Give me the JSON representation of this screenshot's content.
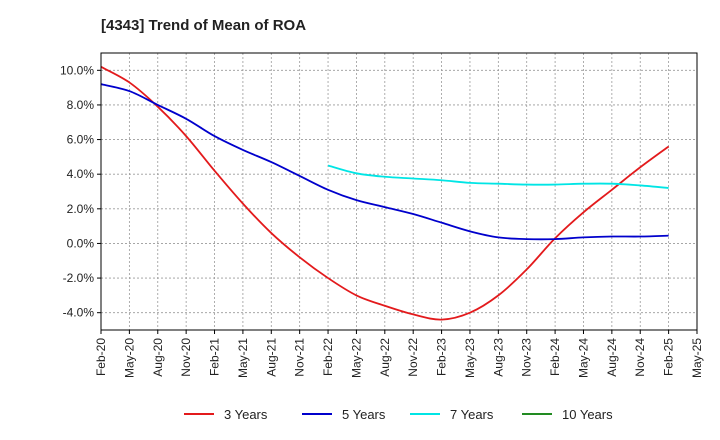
{
  "chart_data": {
    "type": "line",
    "title": "[4343]  Trend of Mean of ROA",
    "xlabel": "",
    "ylabel": "",
    "x_ticks": [
      "Feb-20",
      "May-20",
      "Aug-20",
      "Nov-20",
      "Feb-21",
      "May-21",
      "Aug-21",
      "Nov-21",
      "Feb-22",
      "May-22",
      "Aug-22",
      "Nov-22",
      "Feb-23",
      "May-23",
      "Aug-23",
      "Nov-23",
      "Feb-24",
      "May-24",
      "Aug-24",
      "Nov-24",
      "Feb-25",
      "May-25"
    ],
    "y_ticks": [
      "10.0%",
      "8.0%",
      "6.0%",
      "4.0%",
      "2.0%",
      "0.0%",
      "-2.0%",
      "-4.0%"
    ],
    "y_tick_values": [
      10,
      8,
      6,
      4,
      2,
      0,
      -2,
      -4
    ],
    "ylim": [
      -5.0,
      11.0
    ],
    "grid": true,
    "legend_position": "bottom",
    "series": [
      {
        "name": "3 Years",
        "color": "#e31a1c",
        "x_index": [
          0,
          1,
          2,
          3,
          4,
          5,
          6,
          7,
          8,
          9,
          10,
          11,
          12,
          13,
          14,
          15,
          16,
          17,
          18,
          19,
          20
        ],
        "values": [
          10.2,
          9.3,
          7.9,
          6.2,
          4.2,
          2.3,
          0.6,
          -0.8,
          -2.0,
          -3.0,
          -3.6,
          -4.1,
          -4.4,
          -4.0,
          -3.0,
          -1.5,
          0.3,
          1.8,
          3.1,
          4.4,
          5.6
        ]
      },
      {
        "name": "5 Years",
        "color": "#0000cc",
        "x_index": [
          0,
          1,
          2,
          3,
          4,
          5,
          6,
          7,
          8,
          9,
          10,
          11,
          12,
          13,
          14,
          15,
          16,
          17,
          18,
          19,
          20
        ],
        "values": [
          9.2,
          8.8,
          8.0,
          7.2,
          6.2,
          5.4,
          4.7,
          3.9,
          3.1,
          2.5,
          2.1,
          1.7,
          1.2,
          0.7,
          0.35,
          0.25,
          0.25,
          0.35,
          0.4,
          0.4,
          0.45
        ]
      },
      {
        "name": "7 Years",
        "color": "#00e5e5",
        "x_index": [
          8,
          9,
          10,
          11,
          12,
          13,
          14,
          15,
          16,
          17,
          18,
          19,
          20
        ],
        "values": [
          4.5,
          4.05,
          3.85,
          3.75,
          3.65,
          3.5,
          3.45,
          3.4,
          3.4,
          3.45,
          3.45,
          3.35,
          3.2
        ]
      },
      {
        "name": "10 Years",
        "color": "#228b22",
        "x_index": [],
        "values": []
      }
    ]
  }
}
